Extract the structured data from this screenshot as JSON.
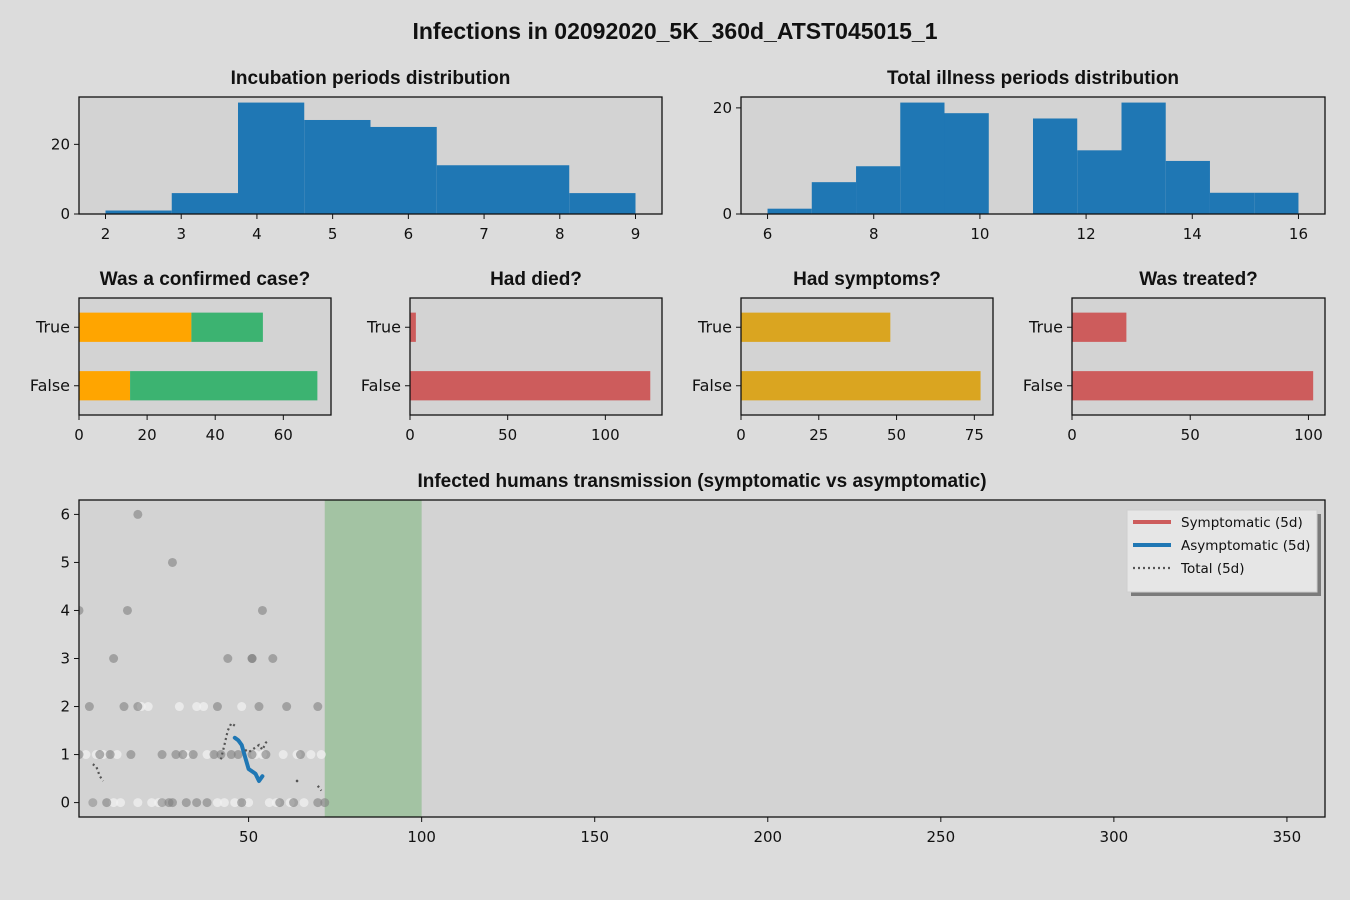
{
  "figure": {
    "title": "Infections in 02092020_5K_360d_ATST045015_1",
    "background": "#dcdcdc",
    "axes_face": "#d3d3d3"
  },
  "colors": {
    "blue": "#1f77b4",
    "orange": "#ffa500",
    "green": "#3cb371",
    "red": "#cd5c5c",
    "gold": "#daa520",
    "gray_marker": "#808080",
    "white_marker": "#f0f0f0",
    "span_green": "#8fbc8f",
    "total_line": "#555555"
  },
  "chart_data": [
    {
      "id": "incubation",
      "type": "bar",
      "subtype": "histogram",
      "title": "Incubation periods distribution",
      "bin_edges": [
        2.0,
        2.875,
        3.75,
        4.625,
        5.5,
        6.375,
        7.25,
        8.125,
        9.0
      ],
      "values": [
        1,
        6,
        32,
        27,
        25,
        14,
        14,
        6
      ],
      "xlim": [
        1.65,
        9.35
      ],
      "ylim": [
        0,
        33.6
      ],
      "xticks": [
        2,
        3,
        4,
        5,
        6,
        7,
        8,
        9
      ],
      "yticks": [
        0,
        20
      ],
      "color": "#1f77b4"
    },
    {
      "id": "illness",
      "type": "bar",
      "subtype": "histogram",
      "title": "Total illness periods distribution",
      "bin_edges": [
        6.0,
        6.833,
        7.667,
        8.5,
        9.333,
        10.167,
        11.0,
        11.833,
        12.667,
        13.5,
        14.333,
        15.167,
        16.0
      ],
      "values": [
        1,
        6,
        9,
        21,
        19,
        0,
        18,
        12,
        21,
        10,
        4,
        4
      ],
      "xlim": [
        5.5,
        16.5
      ],
      "ylim": [
        0,
        22.05
      ],
      "xticks": [
        6,
        8,
        10,
        12,
        14,
        16
      ],
      "yticks": [
        0,
        20
      ],
      "color": "#1f77b4"
    },
    {
      "id": "confirmed",
      "type": "bar",
      "subtype": "horizontal-stacked",
      "title": "Was a confirmed case?",
      "categories": [
        "True",
        "False"
      ],
      "series": [
        {
          "values": [
            33,
            15
          ],
          "color": "#ffa500"
        },
        {
          "values": [
            21,
            55
          ],
          "color": "#3cb371"
        }
      ],
      "xlim": [
        0,
        74
      ],
      "xticks": [
        0,
        20,
        40,
        60
      ]
    },
    {
      "id": "died",
      "type": "bar",
      "subtype": "horizontal",
      "title": "Had died?",
      "categories": [
        "True",
        "False"
      ],
      "series": [
        {
          "values": [
            3,
            123
          ],
          "color": "#cd5c5c"
        }
      ],
      "xlim": [
        0,
        129
      ],
      "xticks": [
        0,
        50,
        100
      ]
    },
    {
      "id": "symptoms",
      "type": "bar",
      "subtype": "horizontal",
      "title": "Had symptoms?",
      "categories": [
        "True",
        "False"
      ],
      "series": [
        {
          "values": [
            48,
            77
          ],
          "color": "#daa520"
        }
      ],
      "xlim": [
        0,
        81
      ],
      "xticks": [
        0,
        25,
        50,
        75
      ]
    },
    {
      "id": "treated",
      "type": "bar",
      "subtype": "horizontal",
      "title": "Was treated?",
      "categories": [
        "True",
        "False"
      ],
      "series": [
        {
          "values": [
            23,
            102
          ],
          "color": "#cd5c5c"
        }
      ],
      "xlim": [
        0,
        107
      ],
      "xticks": [
        0,
        50,
        100
      ]
    },
    {
      "id": "transmission",
      "type": "scatter",
      "title": "Infected humans transmission (symptomatic vs asymptomatic)",
      "xlim": [
        1,
        361
      ],
      "ylim": [
        -0.3,
        6.3
      ],
      "xticks": [
        50,
        100,
        150,
        200,
        250,
        300,
        350
      ],
      "yticks": [
        0,
        1,
        2,
        3,
        4,
        5,
        6
      ],
      "shaded_region": {
        "x": [
          72,
          100
        ],
        "color": "#8fbc8f"
      },
      "legend_position": "upper right",
      "symptomatic_points": [
        [
          1,
          4
        ],
        [
          1,
          1
        ],
        [
          4,
          2
        ],
        [
          5,
          0
        ],
        [
          7,
          1
        ],
        [
          9,
          0
        ],
        [
          10,
          1
        ],
        [
          11,
          3
        ],
        [
          14,
          2
        ],
        [
          15,
          4
        ],
        [
          16,
          1
        ],
        [
          18,
          6
        ],
        [
          18,
          2
        ],
        [
          25,
          1
        ],
        [
          25,
          0
        ],
        [
          27,
          0
        ],
        [
          28,
          5
        ],
        [
          28,
          0
        ],
        [
          29,
          1
        ],
        [
          31,
          1
        ],
        [
          32,
          0
        ],
        [
          34,
          1
        ],
        [
          35,
          0
        ],
        [
          38,
          0
        ],
        [
          40,
          1
        ],
        [
          41,
          2
        ],
        [
          42,
          1
        ],
        [
          44,
          3
        ],
        [
          45,
          1
        ],
        [
          47,
          1
        ],
        [
          48,
          0
        ],
        [
          51,
          3
        ],
        [
          51,
          3
        ],
        [
          51,
          1
        ],
        [
          53,
          2
        ],
        [
          54,
          4
        ],
        [
          55,
          1
        ],
        [
          57,
          3
        ],
        [
          59,
          0
        ],
        [
          61,
          2
        ],
        [
          63,
          0
        ],
        [
          65,
          1
        ],
        [
          70,
          2
        ],
        [
          70,
          0
        ],
        [
          72,
          0
        ]
      ],
      "asymptomatic_points": [
        [
          3,
          1
        ],
        [
          5,
          0
        ],
        [
          6,
          1
        ],
        [
          8,
          1
        ],
        [
          11,
          0
        ],
        [
          12,
          1
        ],
        [
          13,
          0
        ],
        [
          18,
          0
        ],
        [
          19,
          2
        ],
        [
          21,
          2
        ],
        [
          22,
          0
        ],
        [
          24,
          0
        ],
        [
          25,
          0
        ],
        [
          30,
          2
        ],
        [
          32,
          1
        ],
        [
          35,
          2
        ],
        [
          37,
          2
        ],
        [
          38,
          1
        ],
        [
          41,
          0
        ],
        [
          43,
          0
        ],
        [
          46,
          0
        ],
        [
          48,
          2
        ],
        [
          50,
          0
        ],
        [
          52,
          1
        ],
        [
          54,
          1
        ],
        [
          56,
          0
        ],
        [
          58,
          0
        ],
        [
          60,
          1
        ],
        [
          62,
          0
        ],
        [
          64,
          1
        ],
        [
          66,
          0
        ],
        [
          68,
          1
        ],
        [
          71,
          1
        ]
      ],
      "series": [
        {
          "name": "Symptomatic (5d)",
          "color": "#cd5c5c",
          "style": "solid",
          "points": []
        },
        {
          "name": "Asymptomatic (5d)",
          "color": "#1f77b4",
          "style": "solid",
          "points": [
            [
              46,
              1.35
            ],
            [
              47,
              1.3
            ],
            [
              48,
              1.2
            ],
            [
              49,
              0.95
            ],
            [
              50,
              0.7
            ],
            [
              51,
              0.65
            ],
            [
              52,
              0.6
            ],
            [
              53,
              0.45
            ],
            [
              54,
              0.55
            ]
          ]
        },
        {
          "name": "Total (5d)",
          "color": "#555555",
          "style": "dotted",
          "segments": [
            [
              [
                5,
                0.8
              ],
              [
                6,
                0.75
              ],
              [
                7,
                0.55
              ],
              [
                8,
                0.45
              ]
            ],
            [
              [
                42,
                0.9
              ],
              [
                43,
                1.2
              ],
              [
                44,
                1.5
              ],
              [
                45,
                1.65
              ],
              [
                46,
                1.6
              ]
            ],
            [
              [
                49,
                1.1
              ],
              [
                50,
                1.05
              ],
              [
                51,
                1.1
              ],
              [
                52,
                1.15
              ],
              [
                53,
                1.2
              ],
              [
                54,
                1.1
              ],
              [
                55,
                1.25
              ],
              [
                56,
                1.3
              ]
            ],
            [
              [
                64,
                0.45
              ]
            ],
            [
              [
                70,
                0.35
              ],
              [
                71,
                0.25
              ]
            ]
          ]
        }
      ]
    }
  ]
}
